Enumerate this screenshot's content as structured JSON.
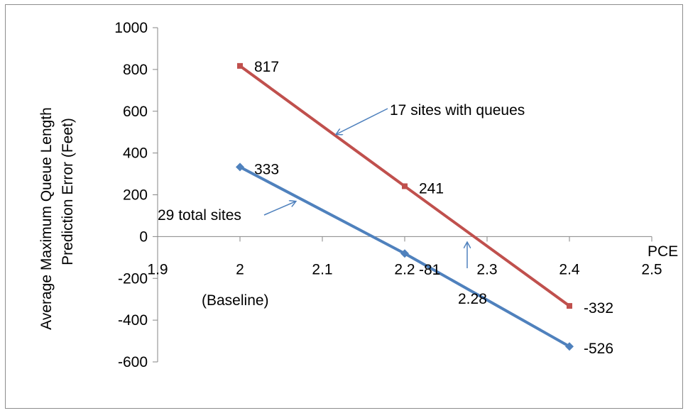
{
  "chart_data": {
    "type": "line",
    "ylabel_line1": "Average Maximum Queue Length",
    "ylabel_line2": "Prediction Error  (Feet)",
    "xlabel": "PCE",
    "xlim": [
      1.9,
      2.5
    ],
    "ylim": [
      -600,
      1000
    ],
    "x_ticks": [
      "1.9",
      "2",
      "2.1",
      "2.2",
      "2.3",
      "2.4",
      "2.5"
    ],
    "y_ticks": [
      "1000",
      "800",
      "600",
      "400",
      "200",
      "0",
      "-200",
      "-400",
      "-600"
    ],
    "grid": false,
    "series": [
      {
        "color": "#c0504d",
        "marker": "square",
        "x": [
          2.0,
          2.2,
          2.4
        ],
        "values": [
          817,
          241,
          -332
        ],
        "labels": [
          "817",
          "241",
          "-332"
        ]
      },
      {
        "color": "#4f81bd",
        "marker": "diamond",
        "x": [
          2.0,
          2.2,
          2.4
        ],
        "values": [
          333,
          -81,
          -526
        ],
        "labels": [
          "333",
          "-81",
          "-526"
        ]
      }
    ],
    "annotations": {
      "red_series_note": "17 sites with queues",
      "blue_series_note": "29 total sites",
      "baseline_note": "(Baseline)",
      "intersection_note": "2.28"
    },
    "annotation_arrow_color": "#4f81bd"
  }
}
